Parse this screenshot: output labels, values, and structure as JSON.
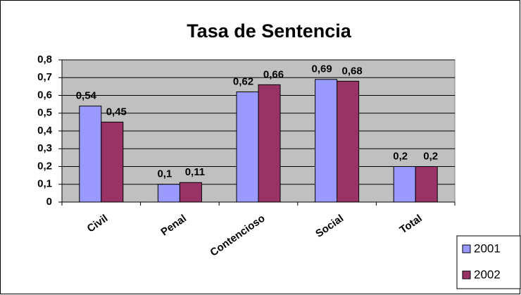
{
  "chart_data": {
    "type": "bar",
    "title": "Tasa de Sentencia",
    "categories": [
      "Civil",
      "Penal",
      "Contencioso",
      "Social",
      "Total"
    ],
    "series": [
      {
        "name": "2001",
        "color": "#9999ff",
        "values": [
          0.54,
          0.1,
          0.62,
          0.69,
          0.2
        ],
        "value_labels": [
          "0,54",
          "0,1",
          "0,62",
          "0,69",
          "0,2"
        ]
      },
      {
        "name": "2002",
        "color": "#993366",
        "values": [
          0.45,
          0.11,
          0.66,
          0.68,
          0.2
        ],
        "value_labels": [
          "0,45",
          "0,11",
          "0,66",
          "0,68",
          "0,2"
        ]
      }
    ],
    "ylim": [
      0,
      0.8
    ],
    "yticks": [
      0,
      {
        "value": 0.1,
        "label": "0,1"
      },
      {
        "value": 0.2,
        "label": "0,2"
      },
      {
        "value": 0.3,
        "label": "0,3"
      },
      {
        "value": 0.4,
        "label": "0,4"
      },
      {
        "value": 0.5,
        "label": "0,5"
      },
      {
        "value": 0.6,
        "label": "0,6"
      },
      {
        "value": 0.7,
        "label": "0,7"
      },
      {
        "value": 0.8,
        "label": "0,8"
      }
    ],
    "grid": true,
    "legend": "right"
  }
}
